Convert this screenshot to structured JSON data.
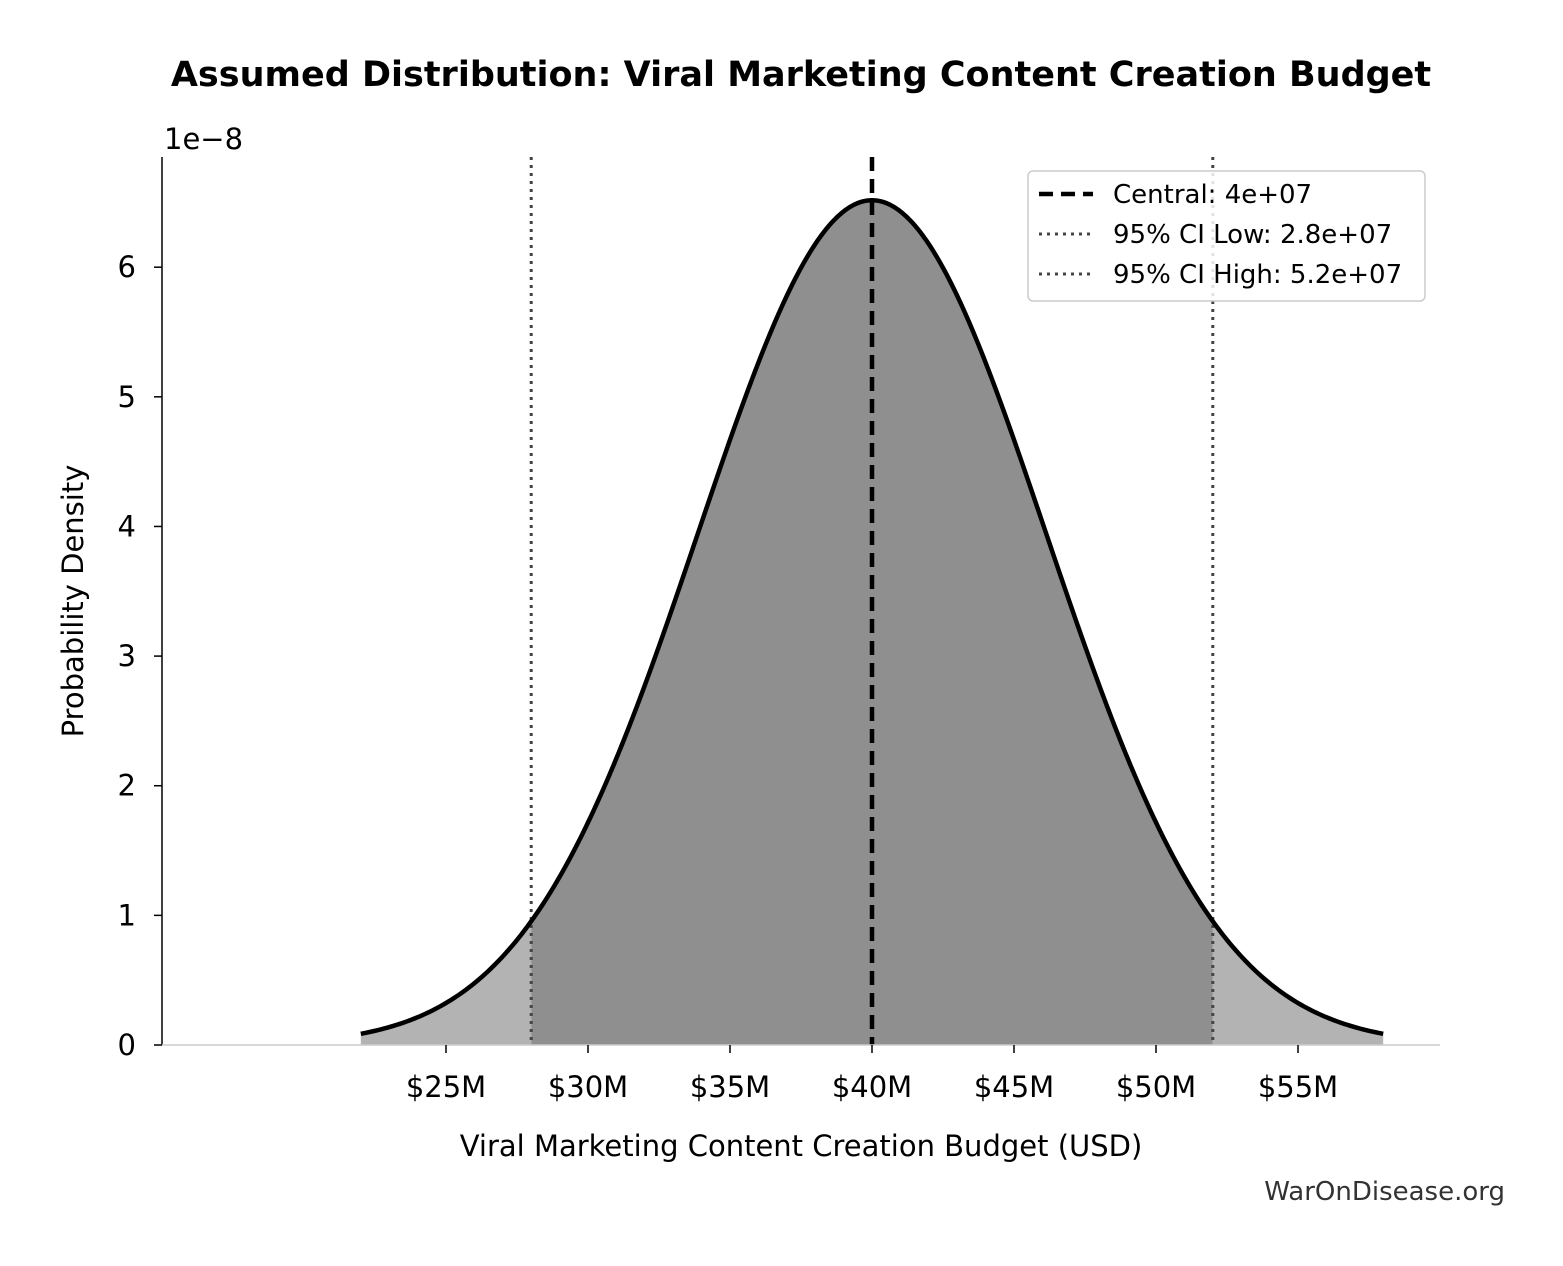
{
  "chart_data": {
    "type": "area",
    "title": "Assumed Distribution: Viral Marketing Content Creation Budget",
    "xlabel": "Viral Marketing Content Creation Budget (USD)",
    "ylabel": "Probability Density",
    "y_offset_label": "1e−8",
    "distribution": {
      "kind": "normal",
      "mean": 40000000,
      "sd": 6122000
    },
    "x_range": [
      22000000,
      58000000
    ],
    "xlim": [
      15000000,
      60000000
    ],
    "ylim": [
      0,
      6.85e-08
    ],
    "x_ticks": [
      {
        "value": 25000000,
        "label": "$25M"
      },
      {
        "value": 30000000,
        "label": "$30M"
      },
      {
        "value": 35000000,
        "label": "$35M"
      },
      {
        "value": 40000000,
        "label": "$40M"
      },
      {
        "value": 45000000,
        "label": "$45M"
      },
      {
        "value": 50000000,
        "label": "$50M"
      },
      {
        "value": 55000000,
        "label": "$55M"
      }
    ],
    "y_ticks": [
      {
        "value": 0,
        "label": "0"
      },
      {
        "value": 1e-08,
        "label": "1"
      },
      {
        "value": 2e-08,
        "label": "2"
      },
      {
        "value": 3e-08,
        "label": "3"
      },
      {
        "value": 4e-08,
        "label": "4"
      },
      {
        "value": 5e-08,
        "label": "5"
      },
      {
        "value": 6e-08,
        "label": "6"
      }
    ],
    "vlines": [
      {
        "name": "Central: 4e+07",
        "x": 40000000,
        "style": "dashed",
        "color": "#000000"
      },
      {
        "name": "95% CI Low: 2.8e+07",
        "x": 28000000,
        "style": "dotted",
        "color": "#444444"
      },
      {
        "name": "95% CI High: 5.2e+07",
        "x": 52000000,
        "style": "dotted",
        "color": "#444444"
      }
    ],
    "colors": {
      "ci_fill": "#8f8f8f",
      "tail_fill": "#b3b3b3",
      "curve": "#000000"
    },
    "legend_position": "top-right",
    "grid": false
  },
  "watermark": "WarOnDisease.org"
}
